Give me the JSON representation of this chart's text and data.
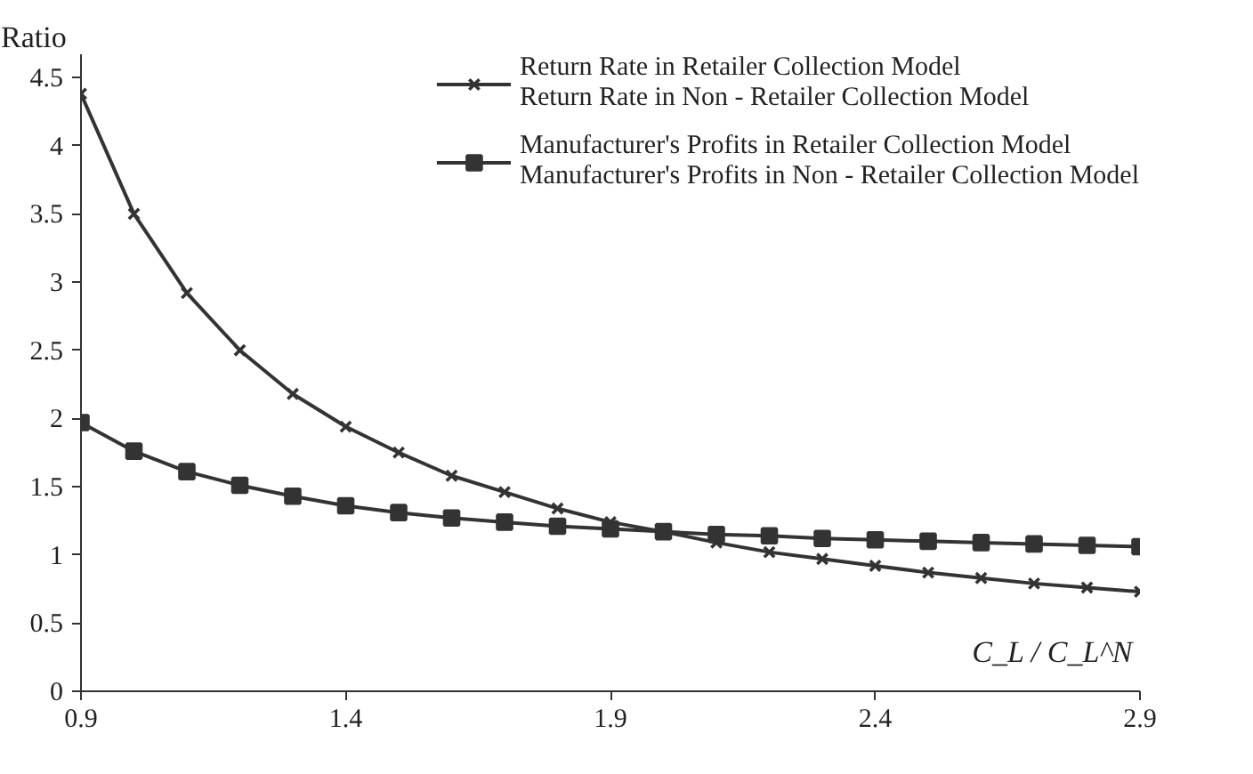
{
  "chart_data": {
    "type": "line",
    "ylabel": "Ratio",
    "xlabel": "C_L / C_L^N",
    "x": [
      0.9,
      1.0,
      1.1,
      1.2,
      1.3,
      1.4,
      1.5,
      1.6,
      1.7,
      1.8,
      1.9,
      2.0,
      2.1,
      2.2,
      2.3,
      2.4,
      2.5,
      2.6,
      2.7,
      2.8,
      2.9
    ],
    "series": [
      {
        "name": "Return Rate in Retailer Collection Model\nReturn Rate in Non - Retailer Collection Model",
        "color": "#333333",
        "marker": "cross",
        "values": [
          4.38,
          3.5,
          2.92,
          2.5,
          2.18,
          1.94,
          1.75,
          1.58,
          1.46,
          1.34,
          1.24,
          1.17,
          1.09,
          1.02,
          0.97,
          0.92,
          0.87,
          0.83,
          0.79,
          0.76,
          0.73
        ]
      },
      {
        "name": "Manufacturer's Profits in Retailer Collection Model\nManufacturer's Profits in Non - Retailer Collection Model",
        "color": "#333333",
        "marker": "square",
        "values": [
          1.97,
          1.76,
          1.61,
          1.51,
          1.43,
          1.36,
          1.31,
          1.27,
          1.24,
          1.21,
          1.19,
          1.17,
          1.15,
          1.14,
          1.12,
          1.11,
          1.1,
          1.09,
          1.08,
          1.07,
          1.06
        ]
      }
    ],
    "xlim": [
      0.9,
      2.9
    ],
    "xticks": [
      0.9,
      1.4,
      1.9,
      2.4,
      2.9
    ],
    "ylim": [
      0,
      4.67
    ],
    "yticks": [
      0,
      0.5,
      1,
      1.5,
      2,
      2.5,
      3,
      3.5,
      4,
      4.5
    ],
    "grid": false,
    "legend": "top right",
    "line_style": "solid"
  }
}
